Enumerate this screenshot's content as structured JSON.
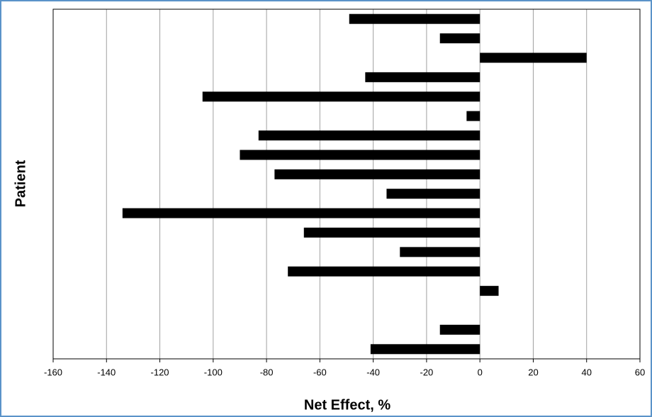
{
  "chart_data": {
    "type": "bar",
    "orientation": "horizontal",
    "xlabel": "Net Effect, %",
    "ylabel": "Patient",
    "categories": [
      null,
      null,
      null,
      null,
      null,
      null,
      null,
      null,
      null,
      null,
      null,
      null,
      null,
      null,
      null,
      null,
      null,
      null
    ],
    "values": [
      -49,
      -15,
      40,
      -43,
      -104,
      -5,
      -83,
      -90,
      -77,
      -35,
      -134,
      -66,
      -30,
      -72,
      7,
      null,
      -15,
      -41
    ],
    "color": "#000000",
    "xlim": [
      -160,
      60
    ],
    "xticks": [
      -160,
      -140,
      -120,
      -100,
      -80,
      -60,
      -40,
      -20,
      0,
      20,
      40,
      60
    ],
    "grid": true
  }
}
